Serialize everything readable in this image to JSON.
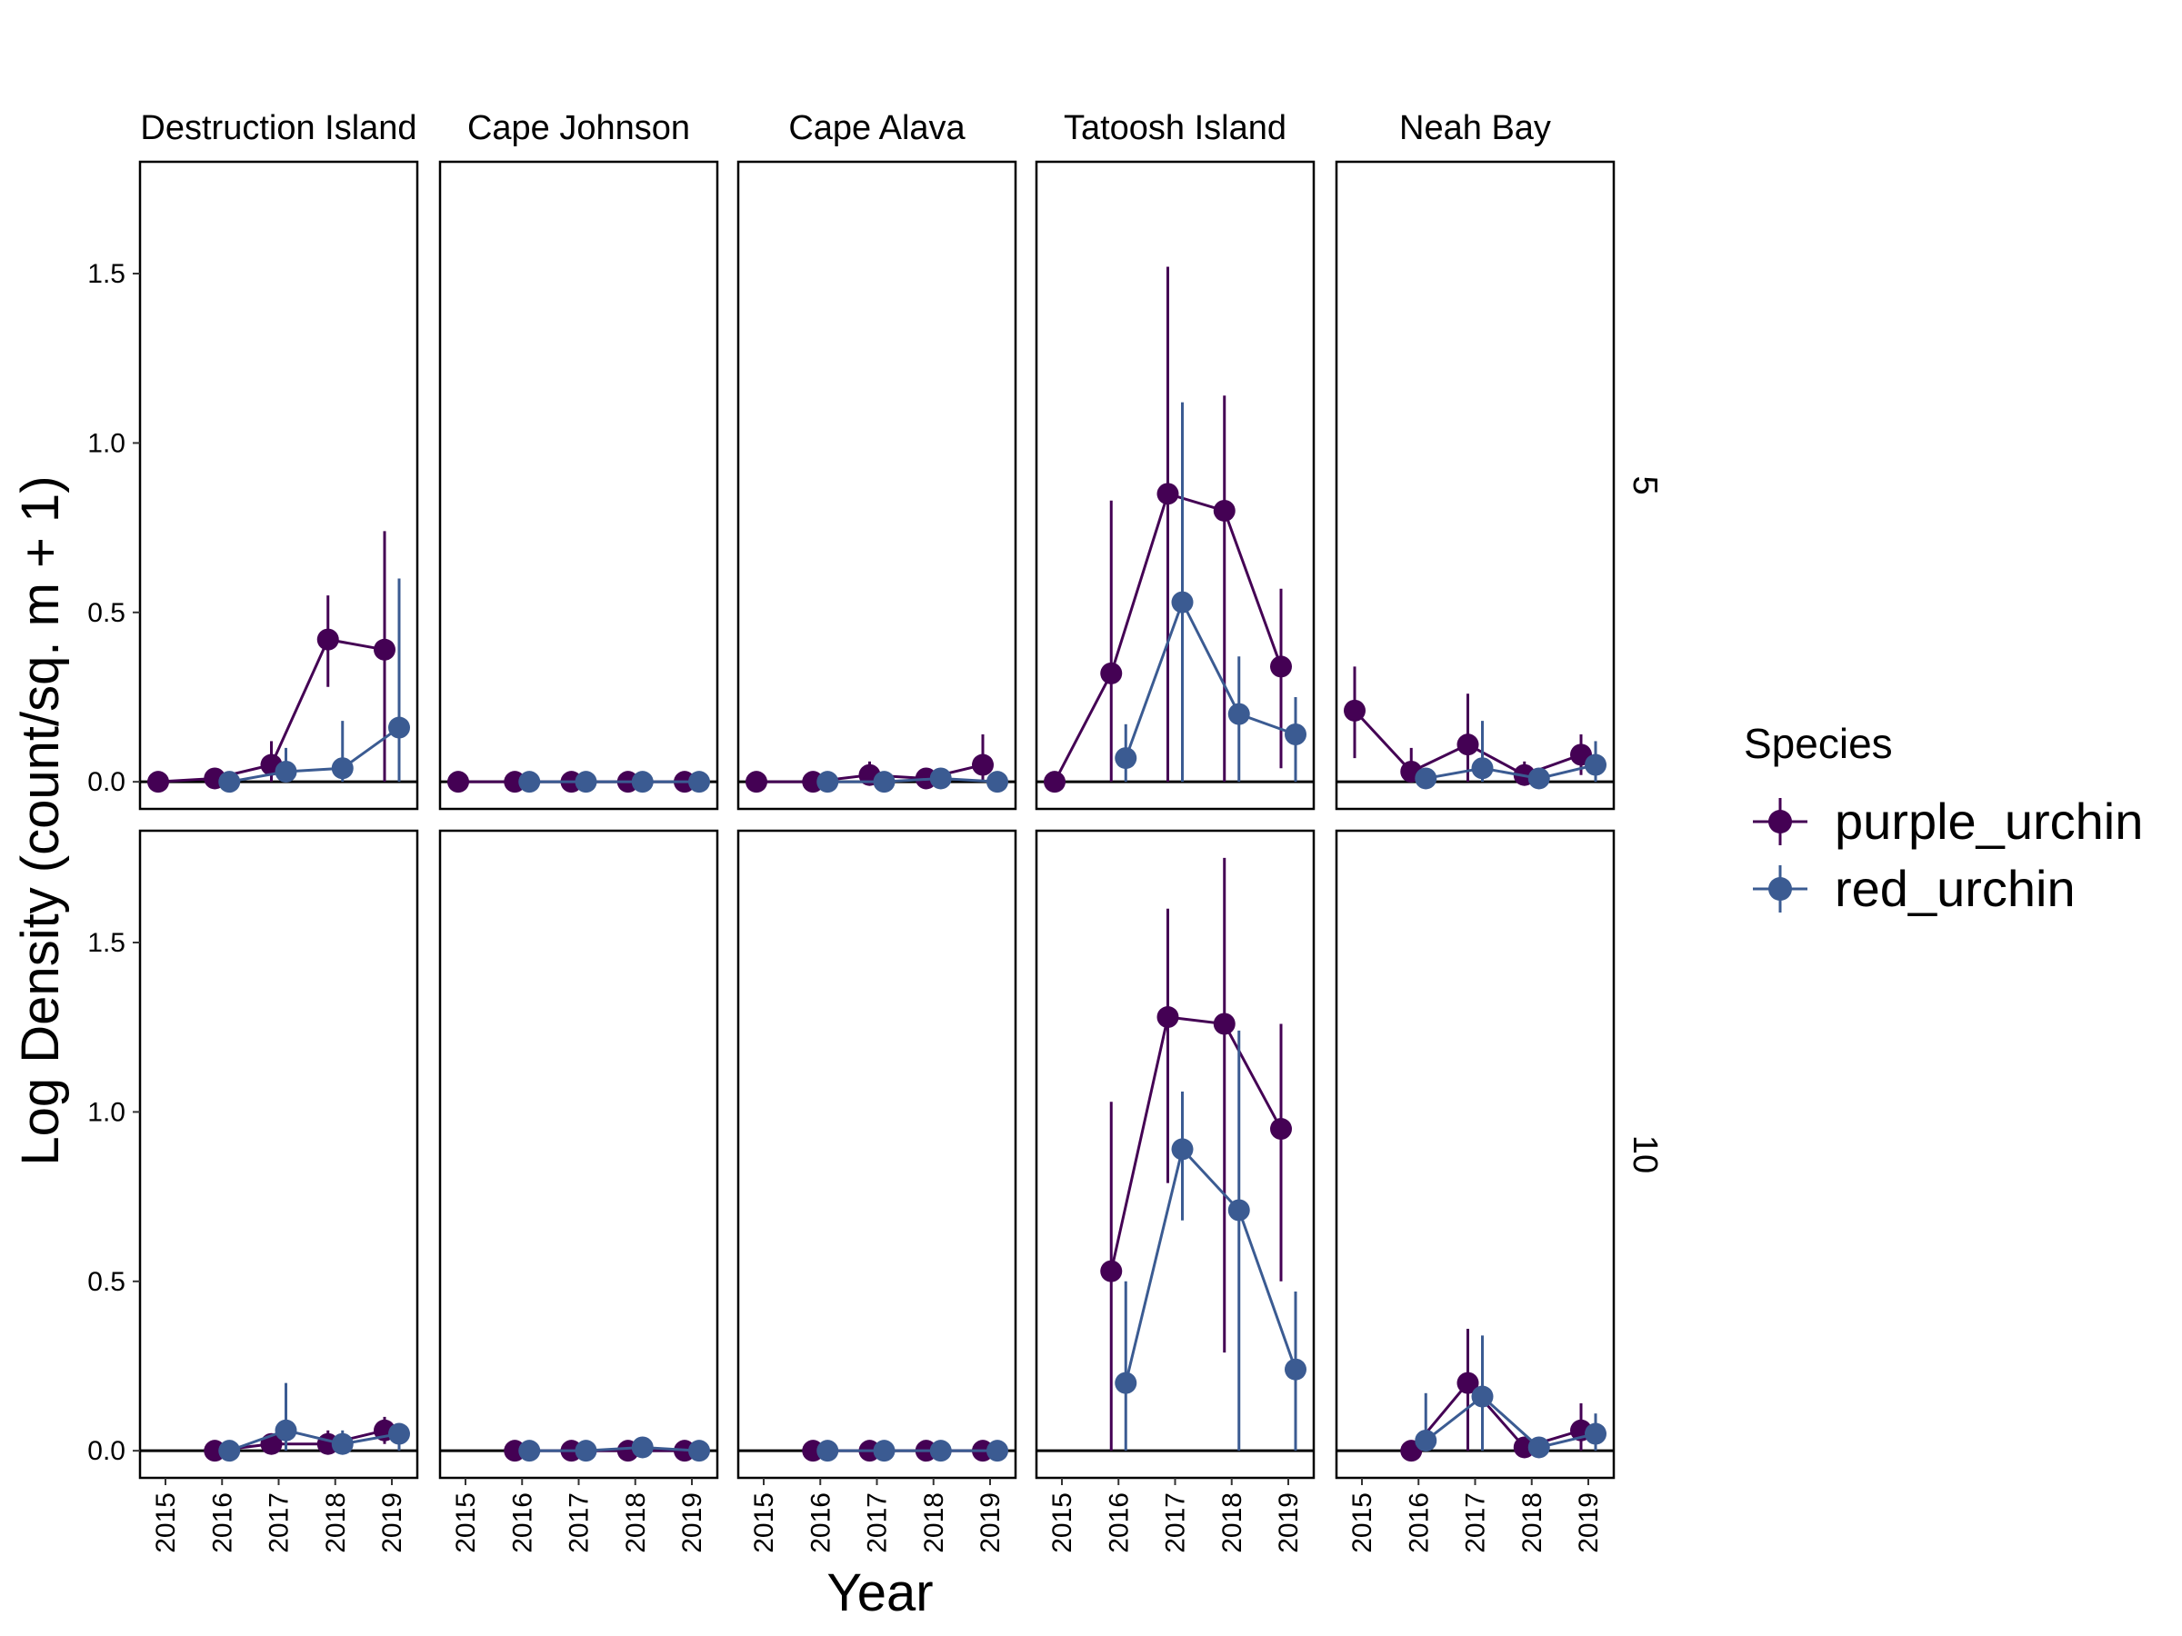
{
  "chart_data": {
    "type": "scatter",
    "facet_columns": [
      "Destruction Island",
      "Cape Johnson",
      "Cape Alava",
      "Tatoosh Island",
      "Neah Bay"
    ],
    "facet_rows": [
      "5",
      "10"
    ],
    "x": [
      "2015",
      "2016",
      "2017",
      "2018",
      "2019"
    ],
    "xlabel": "Year",
    "ylabel": "Log Density (count/sq. m + 1)",
    "ylim": [
      -0.08,
      1.83
    ],
    "yticks": [
      "0.0",
      "0.5",
      "1.0",
      "1.5"
    ],
    "legend": {
      "title": "Species",
      "placement": "right"
    },
    "series": [
      {
        "name": "purple_urchin",
        "color": "#440154"
      },
      {
        "name": "red_urchin",
        "color": "#3B5B92"
      }
    ],
    "panels": [
      {
        "site": "Destruction Island",
        "depth": "5",
        "purple_urchin": [
          [
            0,
            0,
            0
          ],
          [
            0.01,
            0,
            0.02
          ],
          [
            0.05,
            0,
            0.12
          ],
          [
            0.42,
            0.28,
            0.55
          ],
          [
            0.39,
            0,
            0.74
          ]
        ],
        "red_urchin": [
          null,
          [
            0,
            0,
            0
          ],
          [
            0.03,
            0,
            0.1
          ],
          [
            0.04,
            0,
            0.18
          ],
          [
            0.16,
            0,
            0.6
          ]
        ]
      },
      {
        "site": "Cape Johnson",
        "depth": "5",
        "purple_urchin": [
          [
            0,
            0,
            0
          ],
          [
            0,
            0,
            0
          ],
          [
            0,
            0,
            0
          ],
          [
            0,
            0,
            0
          ],
          [
            0,
            0,
            0
          ]
        ],
        "red_urchin": [
          null,
          [
            0,
            0,
            0
          ],
          [
            0,
            0,
            0
          ],
          [
            0,
            0,
            0
          ],
          [
            0,
            0,
            0
          ]
        ]
      },
      {
        "site": "Cape Alava",
        "depth": "5",
        "purple_urchin": [
          [
            0,
            0,
            0
          ],
          [
            0,
            0,
            0
          ],
          [
            0.02,
            0,
            0.06
          ],
          [
            0.01,
            0,
            0.03
          ],
          [
            0.05,
            0,
            0.14
          ]
        ],
        "red_urchin": [
          null,
          [
            0,
            0,
            0
          ],
          [
            0,
            0,
            0
          ],
          [
            0.01,
            0,
            0.03
          ],
          [
            0,
            0,
            0
          ]
        ]
      },
      {
        "site": "Tatoosh Island",
        "depth": "5",
        "purple_urchin": [
          [
            0,
            0,
            0
          ],
          [
            0.32,
            0,
            0.83
          ],
          [
            0.85,
            0,
            1.52
          ],
          [
            0.8,
            0,
            1.14
          ],
          [
            0.34,
            0.04,
            0.57
          ]
        ],
        "red_urchin": [
          null,
          [
            0.07,
            0,
            0.17
          ],
          [
            0.53,
            0,
            1.12
          ],
          [
            0.2,
            0,
            0.37
          ],
          [
            0.14,
            0,
            0.25
          ]
        ]
      },
      {
        "site": "Neah Bay",
        "depth": "5",
        "purple_urchin": [
          [
            0.21,
            0.07,
            0.34
          ],
          [
            0.03,
            0,
            0.1
          ],
          [
            0.11,
            0,
            0.26
          ],
          [
            0.02,
            0,
            0.06
          ],
          [
            0.08,
            0.02,
            0.14
          ]
        ],
        "red_urchin": [
          null,
          [
            0.01,
            0,
            0.02
          ],
          [
            0.04,
            0,
            0.18
          ],
          [
            0.01,
            0,
            0.03
          ],
          [
            0.05,
            0,
            0.12
          ]
        ]
      },
      {
        "site": "Destruction Island",
        "depth": "10",
        "purple_urchin": [
          null,
          [
            0,
            0,
            0
          ],
          [
            0.02,
            0,
            0.05
          ],
          [
            0.02,
            0,
            0.06
          ],
          [
            0.06,
            0.02,
            0.1
          ]
        ],
        "red_urchin": [
          null,
          [
            0,
            0,
            0
          ],
          [
            0.06,
            0,
            0.2
          ],
          [
            0.02,
            0,
            0.06
          ],
          [
            0.05,
            0,
            0.08
          ]
        ]
      },
      {
        "site": "Cape Johnson",
        "depth": "10",
        "purple_urchin": [
          null,
          [
            0,
            0,
            0
          ],
          [
            0,
            0,
            0
          ],
          [
            0,
            0,
            0
          ],
          [
            0,
            0,
            0
          ]
        ],
        "red_urchin": [
          null,
          [
            0,
            0,
            0
          ],
          [
            0,
            0,
            0
          ],
          [
            0.01,
            0,
            0.02
          ],
          [
            0,
            0,
            0
          ]
        ]
      },
      {
        "site": "Cape Alava",
        "depth": "10",
        "purple_urchin": [
          null,
          [
            0,
            0,
            0
          ],
          [
            0,
            0,
            0
          ],
          [
            0,
            0,
            0
          ],
          [
            0,
            0,
            0
          ]
        ],
        "red_urchin": [
          null,
          [
            0,
            0,
            0
          ],
          [
            0,
            0,
            0
          ],
          [
            0,
            0,
            0
          ],
          [
            0,
            0,
            0
          ]
        ]
      },
      {
        "site": "Tatoosh Island",
        "depth": "10",
        "purple_urchin": [
          null,
          [
            0.53,
            0,
            1.03
          ],
          [
            1.28,
            0.79,
            1.6
          ],
          [
            1.26,
            0.29,
            1.75
          ],
          [
            0.95,
            0.5,
            1.26
          ]
        ],
        "red_urchin": [
          null,
          [
            0.2,
            0,
            0.5
          ],
          [
            0.89,
            0.68,
            1.06
          ],
          [
            0.71,
            0,
            1.24
          ],
          [
            0.24,
            0,
            0.47
          ]
        ]
      },
      {
        "site": "Neah Bay",
        "depth": "10",
        "purple_urchin": [
          null,
          [
            0,
            0,
            0
          ],
          [
            0.2,
            0,
            0.36
          ],
          [
            0.01,
            0,
            0.03
          ],
          [
            0.06,
            0,
            0.14
          ]
        ],
        "red_urchin": [
          null,
          [
            0.03,
            0,
            0.17
          ],
          [
            0.16,
            0,
            0.34
          ],
          [
            0.01,
            0,
            0.03
          ],
          [
            0.05,
            0,
            0.11
          ]
        ]
      }
    ]
  }
}
